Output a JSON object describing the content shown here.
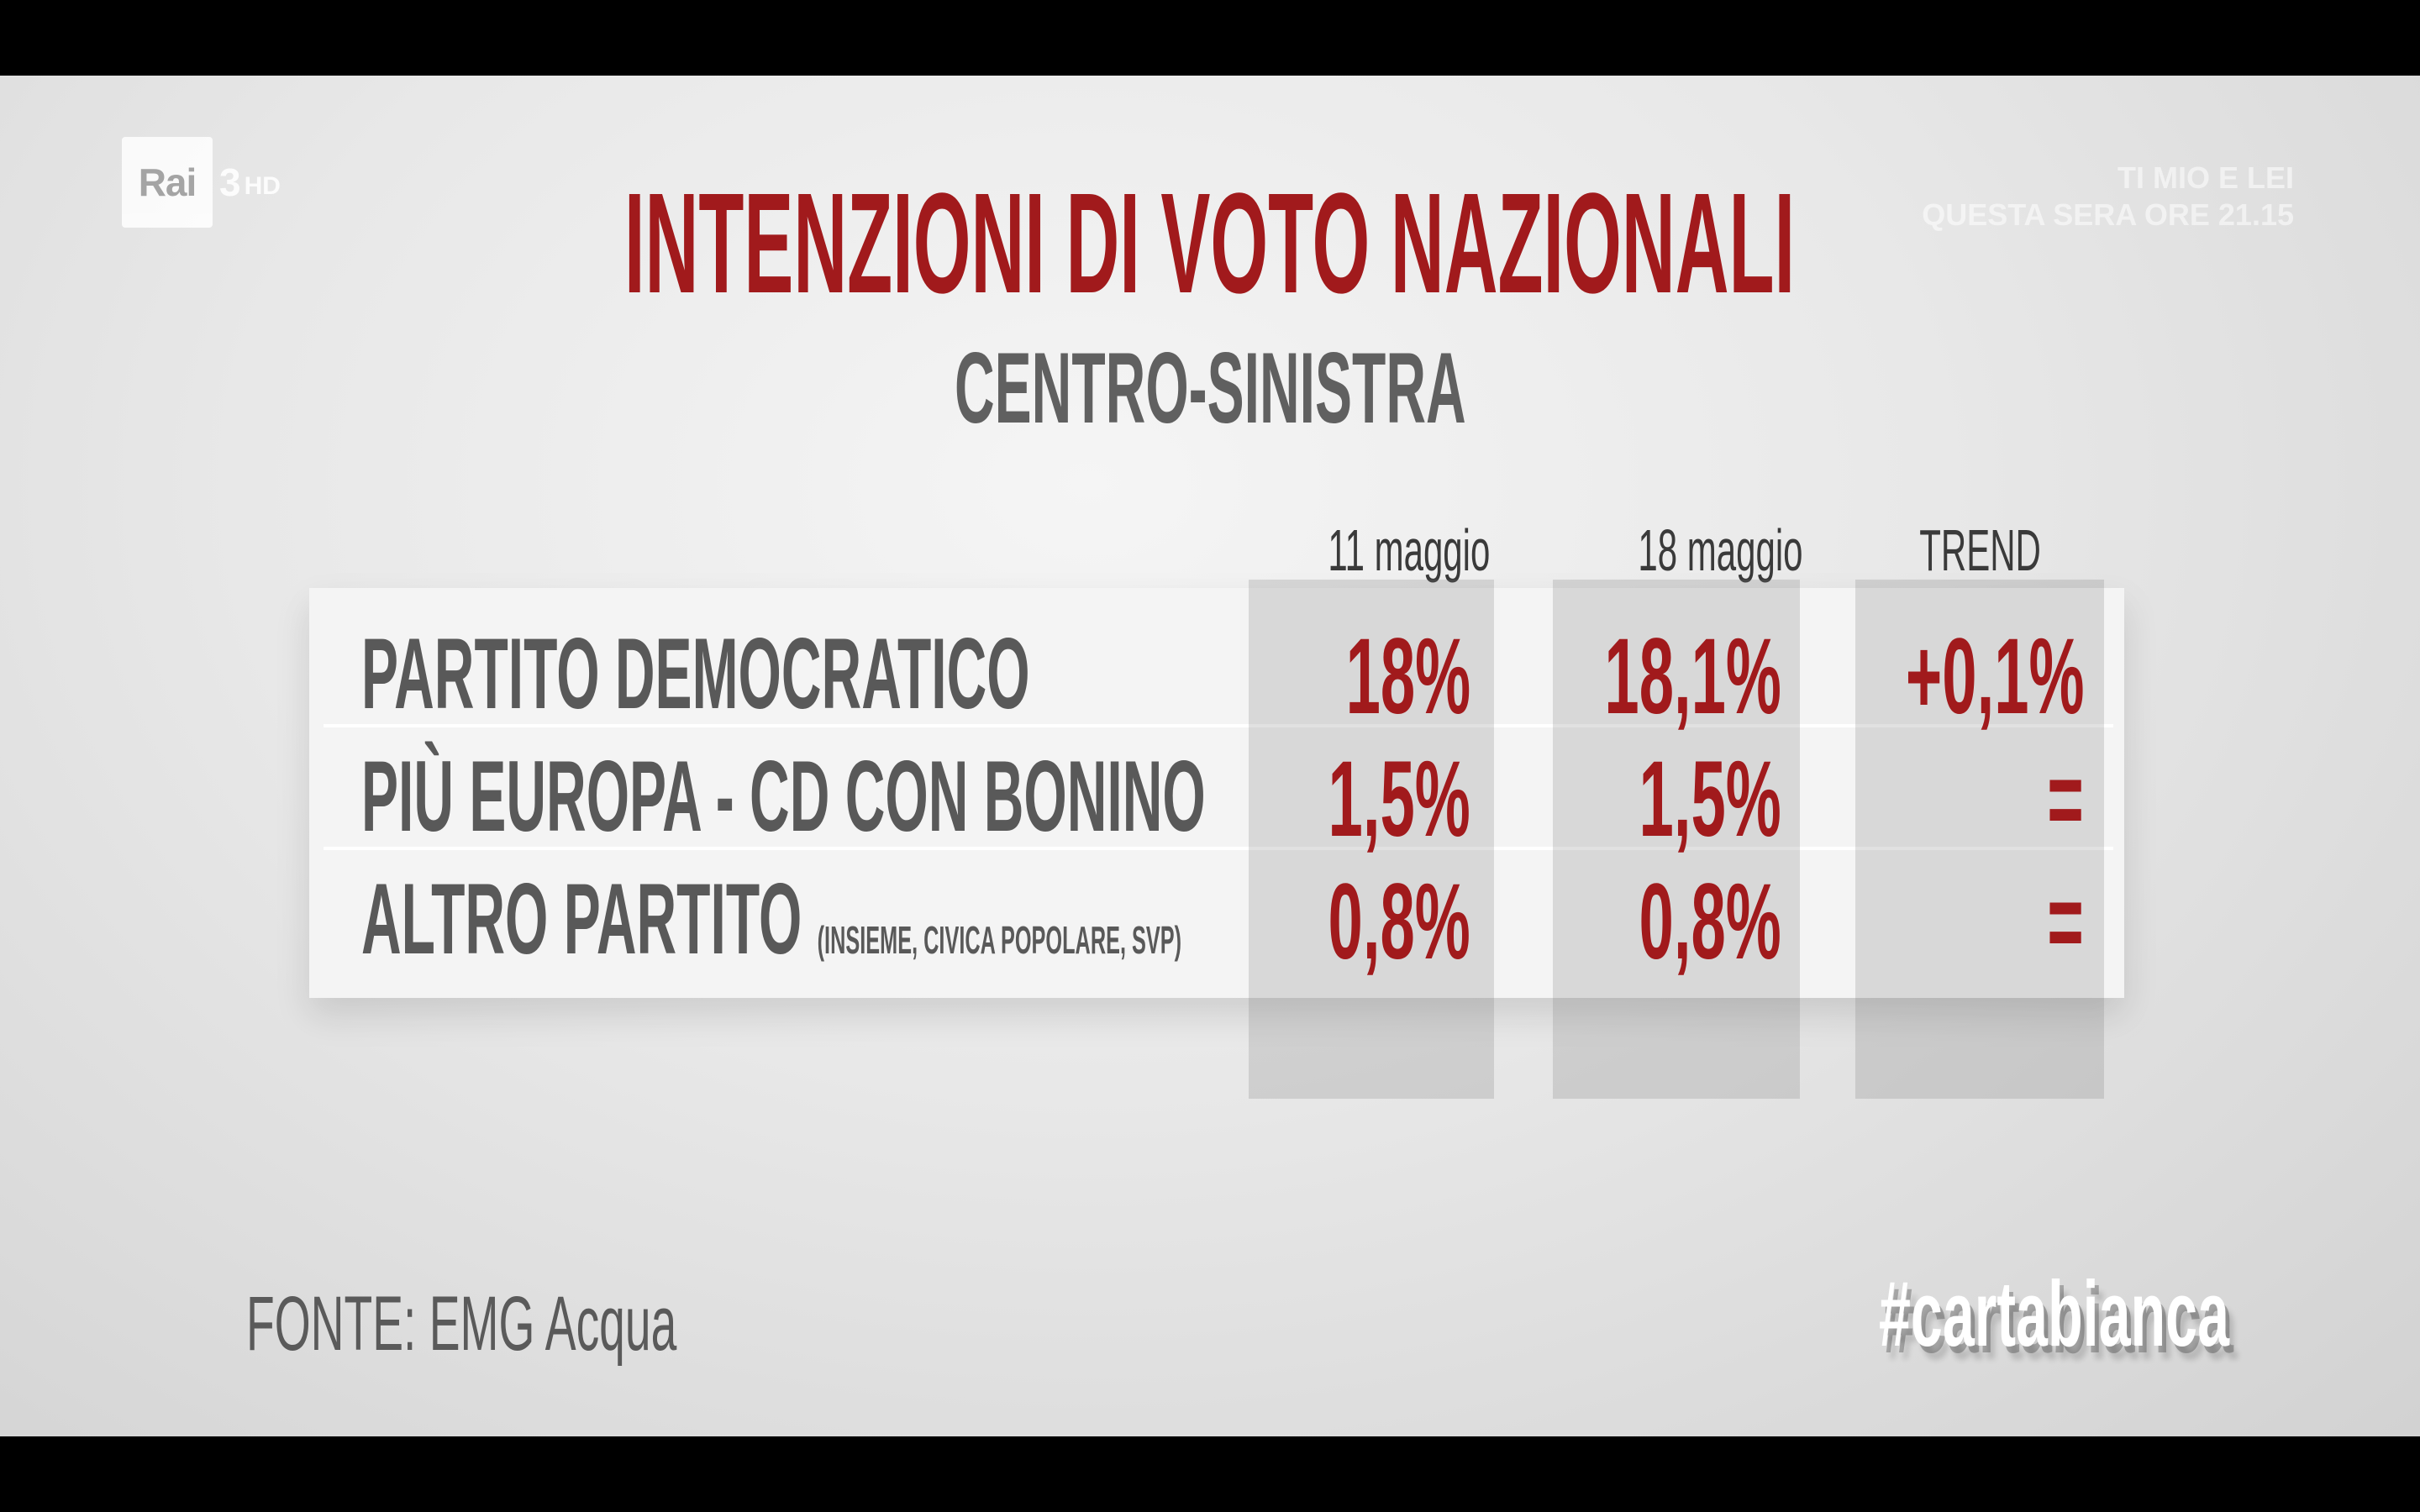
{
  "channel": {
    "name": "Rai",
    "number": "3",
    "quality": "HD"
  },
  "promo": {
    "line1": "TI MIO E LEI",
    "line2": "QUESTA SERA ORE 21.15"
  },
  "title": "INTENZIONI DI VOTO NAZIONALI",
  "subtitle": "CENTRO-SINISTRA",
  "columns": {
    "date1": "11 maggio",
    "date2": "18 maggio",
    "trend": "TREND"
  },
  "rows": [
    {
      "party": "PARTITO DEMOCRATICO",
      "note": "",
      "v1": "18%",
      "v2": "18,1%",
      "trend": "+0,1%"
    },
    {
      "party": "PIÙ EUROPA - CD CON BONINO",
      "note": "",
      "v1": "1,5%",
      "v2": "1,5%",
      "trend": "="
    },
    {
      "party": "ALTRO PARTITO",
      "note": "(INSIEME, CIVICA POPOLARE, SVP)",
      "v1": "0,8%",
      "v2": "0,8%",
      "trend": "="
    }
  ],
  "source": "FONTE: EMG Acqua",
  "hashtag": "#cartabianca",
  "colors": {
    "accent": "#a11a1c",
    "text": "#595959"
  }
}
